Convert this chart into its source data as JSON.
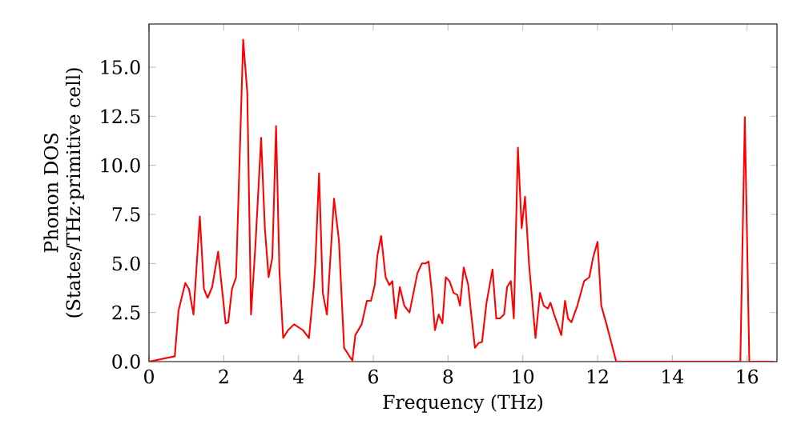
{
  "chart_data": {
    "type": "line",
    "xlabel": "Frequency (THz)",
    "ylabel": "Phonon DOS\n(States/THz·primitive cell)",
    "xlim": [
      0,
      16.8
    ],
    "ylim": [
      0,
      17.2
    ],
    "xticks": [
      0,
      2,
      4,
      6,
      8,
      10,
      12,
      14,
      16
    ],
    "yticks": [
      {
        "value": 0,
        "label": "0.0"
      },
      {
        "value": 2.5,
        "label": "2.5"
      },
      {
        "value": 5,
        "label": "5.0"
      },
      {
        "value": 7.5,
        "label": "7.5"
      },
      {
        "value": 10,
        "label": "10.0"
      },
      {
        "value": 12.5,
        "label": "12.5"
      },
      {
        "value": 15,
        "label": "15.0"
      }
    ],
    "marker": "none",
    "line_style": "solid",
    "series": [
      {
        "color": "#ff0000",
        "x": [
          0,
          0.69,
          0.79,
          0.97,
          1.07,
          1.19,
          1.36,
          1.47,
          1.57,
          1.69,
          1.85,
          2.05,
          2.12,
          2.22,
          2.33,
          2.52,
          2.63,
          2.73,
          2.85,
          3.0,
          3.1,
          3.2,
          3.3,
          3.4,
          3.49,
          3.59,
          3.72,
          3.88,
          4.12,
          4.28,
          4.41,
          4.45,
          4.55,
          4.65,
          4.76,
          4.95,
          5.08,
          5.22,
          5.44,
          5.52,
          5.69,
          5.83,
          5.94,
          6.04,
          6.11,
          6.21,
          6.33,
          6.43,
          6.51,
          6.6,
          6.71,
          6.83,
          6.97,
          7.18,
          7.3,
          7.4,
          7.48,
          7.57,
          7.65,
          7.75,
          7.85,
          7.94,
          8.04,
          8.15,
          8.25,
          8.32,
          8.42,
          8.54,
          8.61,
          8.72,
          8.82,
          8.91,
          9.03,
          9.19,
          9.29,
          9.39,
          9.5,
          9.58,
          9.68,
          9.76,
          9.87,
          9.97,
          10.06,
          10.17,
          10.34,
          10.46,
          10.56,
          10.67,
          10.74,
          10.84,
          11.03,
          11.13,
          11.21,
          11.3,
          11.46,
          11.64,
          11.78,
          11.88,
          12.0,
          12.1,
          12.24,
          12.5,
          15.82,
          15.94,
          16.06,
          16.7
        ],
        "values": [
          0,
          0.27,
          2.6,
          4.0,
          3.7,
          2.4,
          7.4,
          3.7,
          3.25,
          3.8,
          5.6,
          1.95,
          2.0,
          3.7,
          4.3,
          16.4,
          13.7,
          2.4,
          6.0,
          11.4,
          6.8,
          4.3,
          5.3,
          12.0,
          4.6,
          1.2,
          1.6,
          1.9,
          1.6,
          1.2,
          3.8,
          5.0,
          9.6,
          3.5,
          2.4,
          8.3,
          6.2,
          0.7,
          0.05,
          1.35,
          1.9,
          3.1,
          3.1,
          3.9,
          5.4,
          6.4,
          4.3,
          3.9,
          4.1,
          2.2,
          3.8,
          2.85,
          2.5,
          4.5,
          5.0,
          5.0,
          5.1,
          3.5,
          1.6,
          2.4,
          1.95,
          4.3,
          4.1,
          3.5,
          3.4,
          2.85,
          4.8,
          3.9,
          2.6,
          0.7,
          0.95,
          1.0,
          3.0,
          4.7,
          2.2,
          2.2,
          2.4,
          3.8,
          4.1,
          2.2,
          10.9,
          6.8,
          8.4,
          4.9,
          1.2,
          3.5,
          2.85,
          2.7,
          3.0,
          2.4,
          1.35,
          3.1,
          2.2,
          2.0,
          2.85,
          4.1,
          4.3,
          5.3,
          6.1,
          2.85,
          1.9,
          0,
          0,
          12.45,
          0,
          0
        ]
      }
    ]
  }
}
